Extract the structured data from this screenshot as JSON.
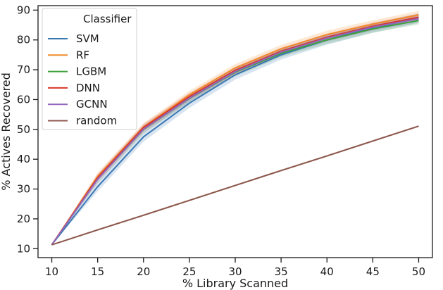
{
  "chart_data": {
    "type": "line",
    "xlabel": "% Library Scanned",
    "ylabel": "% Actives Recovered",
    "x": [
      10,
      15,
      20,
      25,
      30,
      35,
      40,
      45,
      50
    ],
    "xlim": [
      8.5,
      51.5
    ],
    "ylim": [
      7,
      91.5
    ],
    "xticks": [
      10,
      15,
      20,
      25,
      30,
      35,
      40,
      45,
      50
    ],
    "yticks": [
      10,
      20,
      30,
      40,
      50,
      60,
      70,
      80,
      90
    ],
    "grid": false,
    "legend": {
      "title": "Classifier",
      "placement": "top-left"
    },
    "series": [
      {
        "name": "SVM",
        "color": "#3a78b4",
        "values": [
          11.3,
          30.8,
          47.5,
          58.8,
          68.3,
          75.0,
          80.0,
          84.0,
          87.3
        ],
        "band": 1.6
      },
      {
        "name": "RF",
        "color": "#f08a2c",
        "values": [
          11.3,
          34.2,
          50.8,
          61.6,
          70.6,
          77.0,
          81.8,
          85.3,
          88.4
        ],
        "band": 1.3
      },
      {
        "name": "LGBM",
        "color": "#3ca03c",
        "values": [
          11.3,
          33.4,
          50.0,
          60.4,
          69.2,
          75.5,
          80.0,
          83.7,
          86.5
        ],
        "band": 1.3
      },
      {
        "name": "DNN",
        "color": "#d8352b",
        "values": [
          11.3,
          33.8,
          50.6,
          61.0,
          69.8,
          76.2,
          80.9,
          84.6,
          87.6
        ],
        "band": 1.2
      },
      {
        "name": "GCNN",
        "color": "#9267bd",
        "values": [
          11.3,
          33.3,
          50.1,
          60.5,
          69.4,
          75.9,
          80.6,
          84.3,
          87.1
        ],
        "band": 1.2
      },
      {
        "name": "random",
        "color": "#8c564b",
        "values": [
          11.3,
          16.3,
          21.2,
          26.2,
          31.2,
          36.2,
          41.1,
          46.1,
          51.1
        ],
        "band": 0.3
      }
    ]
  }
}
